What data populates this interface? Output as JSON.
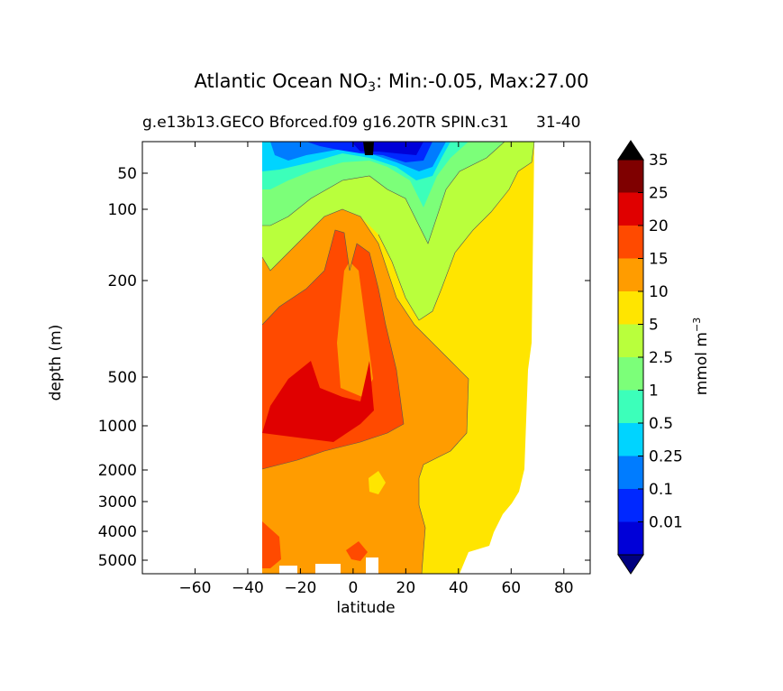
{
  "figure": {
    "title_main": "Atlantic Ocean NO",
    "title_sub": "3",
    "title_rest": ": Min:-0.05, Max:27.00",
    "subtitle": "g.e13b13.GECO Bforced.f09 g16.20TR SPIN.c31",
    "run_label": "31-40",
    "xlabel": "latitude",
    "ylabel": "depth (m)",
    "colorbar_label_main": "mmol m",
    "colorbar_label_sup": "−3"
  },
  "chart_data": {
    "type": "filled-contour",
    "xlim": [
      -80,
      90
    ],
    "ylim": [
      5500,
      10
    ],
    "y_scale": "log-like depth axis",
    "x_ticks": [
      -60,
      -40,
      -20,
      0,
      20,
      40,
      60,
      80
    ],
    "x_tick_labels": [
      "−60",
      "−40",
      "−20",
      "0",
      "20",
      "40",
      "60",
      "80"
    ],
    "y_ticks": [
      50,
      100,
      200,
      500,
      1000,
      2000,
      3000,
      4000,
      5000
    ],
    "y_tick_labels": [
      "50",
      "100",
      "200",
      "500",
      "1000",
      "2000",
      "3000",
      "4000",
      "5000"
    ],
    "data_extent_latitude": [
      -34,
      68
    ],
    "levels": [
      0.01,
      0.1,
      0.25,
      0.5,
      1,
      2.5,
      5,
      10,
      15,
      20,
      25,
      35
    ],
    "level_labels": [
      "0.01",
      "0.1",
      "0.25",
      "0.5",
      "1",
      "2.5",
      "5",
      "10",
      "15",
      "20",
      "25",
      "35"
    ],
    "colors": [
      "#00007f",
      "#0000d8",
      "#0028ff",
      "#007cff",
      "#00d4ff",
      "#3cffba",
      "#7cff79",
      "#b9ff3c",
      "#ffe500",
      "#ff9c00",
      "#ff4a00",
      "#e00000",
      "#7f0000",
      "#000000"
    ],
    "min": -0.05,
    "max": 27.0,
    "colorbar_extend": "both"
  }
}
